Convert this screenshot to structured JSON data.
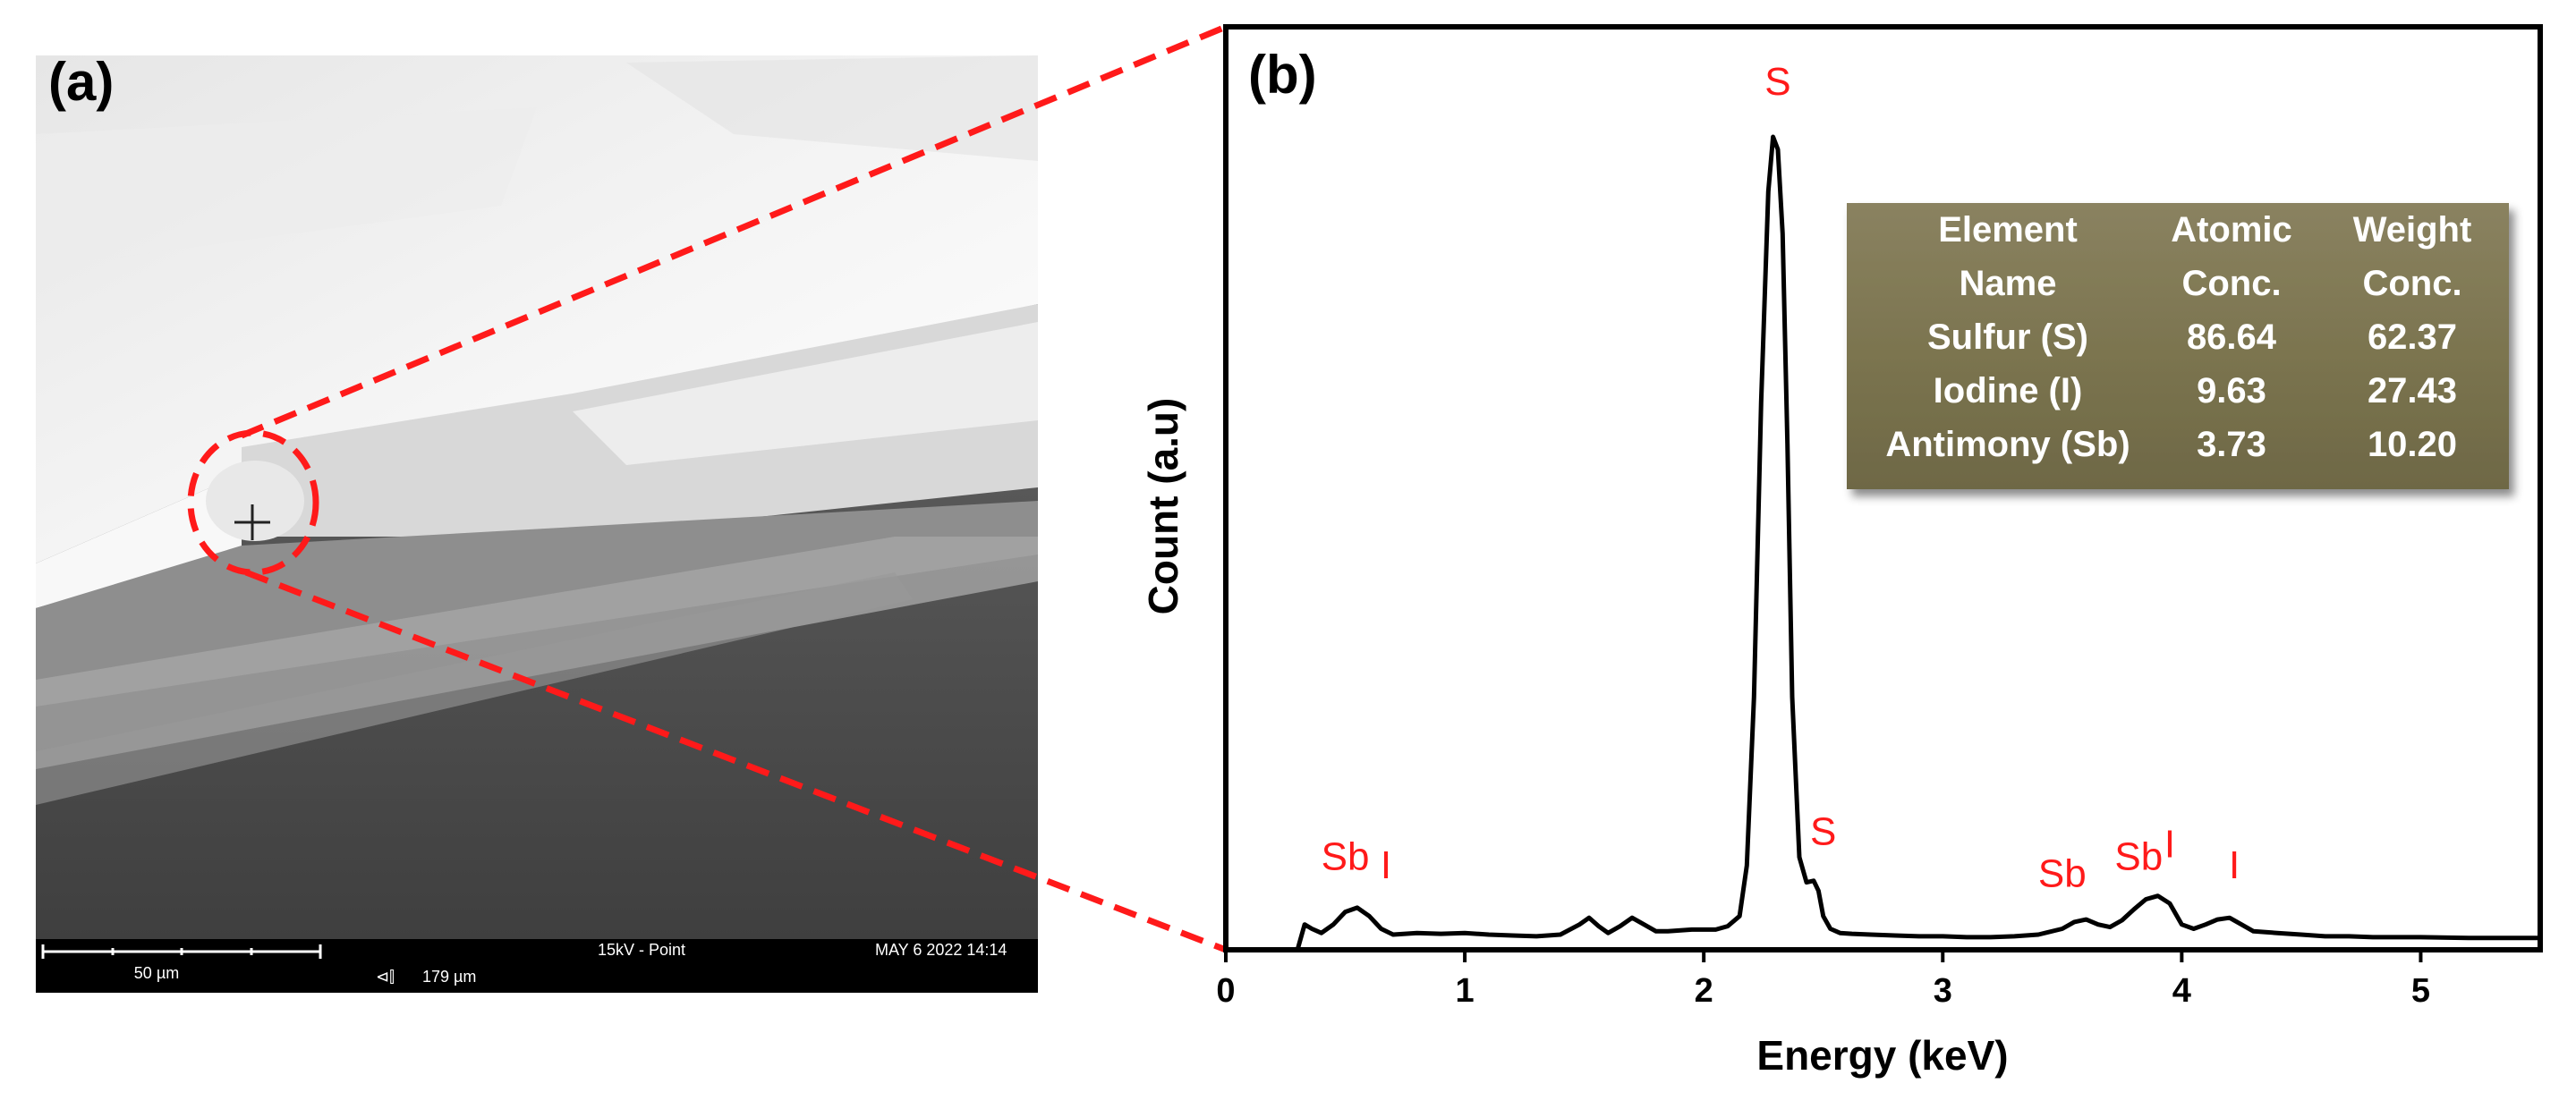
{
  "panel_a": {
    "label": "(a)",
    "infobar": {
      "scale_bar_text": "50 µm",
      "hfw_text": "179 µm",
      "mode_text": "15kV - Point",
      "date_text": "MAY 6 2022 14:14"
    }
  },
  "colors": {
    "highlight": "#ff1a1a",
    "table_fill": "#7c7550",
    "spectrum": "#000000"
  },
  "chart_data": {
    "type": "line",
    "panel_label": "(b)",
    "title": "",
    "xlabel": "Energy (keV)",
    "ylabel": "Count (a.u)",
    "xlim": [
      0,
      5.5
    ],
    "ylim": [
      0,
      1
    ],
    "xticks": [
      0,
      1,
      2,
      3,
      4,
      5
    ],
    "x": [
      0.3,
      0.33,
      0.36,
      0.4,
      0.45,
      0.5,
      0.55,
      0.6,
      0.65,
      0.7,
      0.8,
      0.9,
      1.0,
      1.1,
      1.2,
      1.3,
      1.4,
      1.48,
      1.52,
      1.56,
      1.6,
      1.65,
      1.7,
      1.75,
      1.8,
      1.85,
      1.95,
      2.05,
      2.1,
      2.15,
      2.18,
      2.21,
      2.24,
      2.27,
      2.29,
      2.31,
      2.33,
      2.35,
      2.37,
      2.4,
      2.43,
      2.46,
      2.48,
      2.5,
      2.53,
      2.57,
      2.62,
      2.7,
      2.8,
      2.9,
      3.0,
      3.1,
      3.2,
      3.3,
      3.4,
      3.5,
      3.55,
      3.6,
      3.65,
      3.7,
      3.75,
      3.8,
      3.85,
      3.9,
      3.95,
      4.0,
      4.05,
      4.1,
      4.15,
      4.2,
      4.25,
      4.3,
      4.4,
      4.5,
      4.6,
      4.7,
      4.8,
      5.0,
      5.2,
      5.5
    ],
    "y": [
      0.0,
      0.03,
      0.025,
      0.02,
      0.03,
      0.045,
      0.05,
      0.04,
      0.025,
      0.018,
      0.02,
      0.019,
      0.02,
      0.018,
      0.017,
      0.016,
      0.018,
      0.03,
      0.038,
      0.028,
      0.02,
      0.028,
      0.038,
      0.03,
      0.022,
      0.022,
      0.024,
      0.024,
      0.028,
      0.04,
      0.1,
      0.3,
      0.65,
      0.9,
      0.965,
      0.95,
      0.85,
      0.6,
      0.3,
      0.11,
      0.08,
      0.082,
      0.07,
      0.04,
      0.025,
      0.02,
      0.019,
      0.018,
      0.017,
      0.016,
      0.016,
      0.015,
      0.015,
      0.016,
      0.018,
      0.025,
      0.033,
      0.036,
      0.03,
      0.027,
      0.035,
      0.048,
      0.06,
      0.064,
      0.055,
      0.03,
      0.025,
      0.03,
      0.036,
      0.038,
      0.03,
      0.022,
      0.02,
      0.018,
      0.016,
      0.016,
      0.015,
      0.015,
      0.014,
      0.014
    ],
    "peak_labels": [
      {
        "text": "Sb",
        "x": 0.5,
        "y": 0.08
      },
      {
        "text": "I",
        "x": 0.67,
        "y": 0.07
      },
      {
        "text": "S",
        "x": 2.31,
        "y": 1.0
      },
      {
        "text": "S",
        "x": 2.5,
        "y": 0.11
      },
      {
        "text": "Sb",
        "x": 3.5,
        "y": 0.06
      },
      {
        "text": "Sb",
        "x": 3.82,
        "y": 0.08
      },
      {
        "text": "I",
        "x": 3.95,
        "y": 0.095
      },
      {
        "text": "I",
        "x": 4.22,
        "y": 0.07
      }
    ],
    "table": {
      "headers": [
        [
          "Element",
          "Name"
        ],
        [
          "Atomic",
          "Conc."
        ],
        [
          "Weight",
          "Conc."
        ]
      ],
      "rows": [
        [
          "Sulfur (S)",
          "86.64",
          "62.37"
        ],
        [
          "Iodine (I)",
          "9.63",
          "27.43"
        ],
        [
          "Antimony (Sb)",
          "3.73",
          "10.20"
        ]
      ]
    }
  }
}
